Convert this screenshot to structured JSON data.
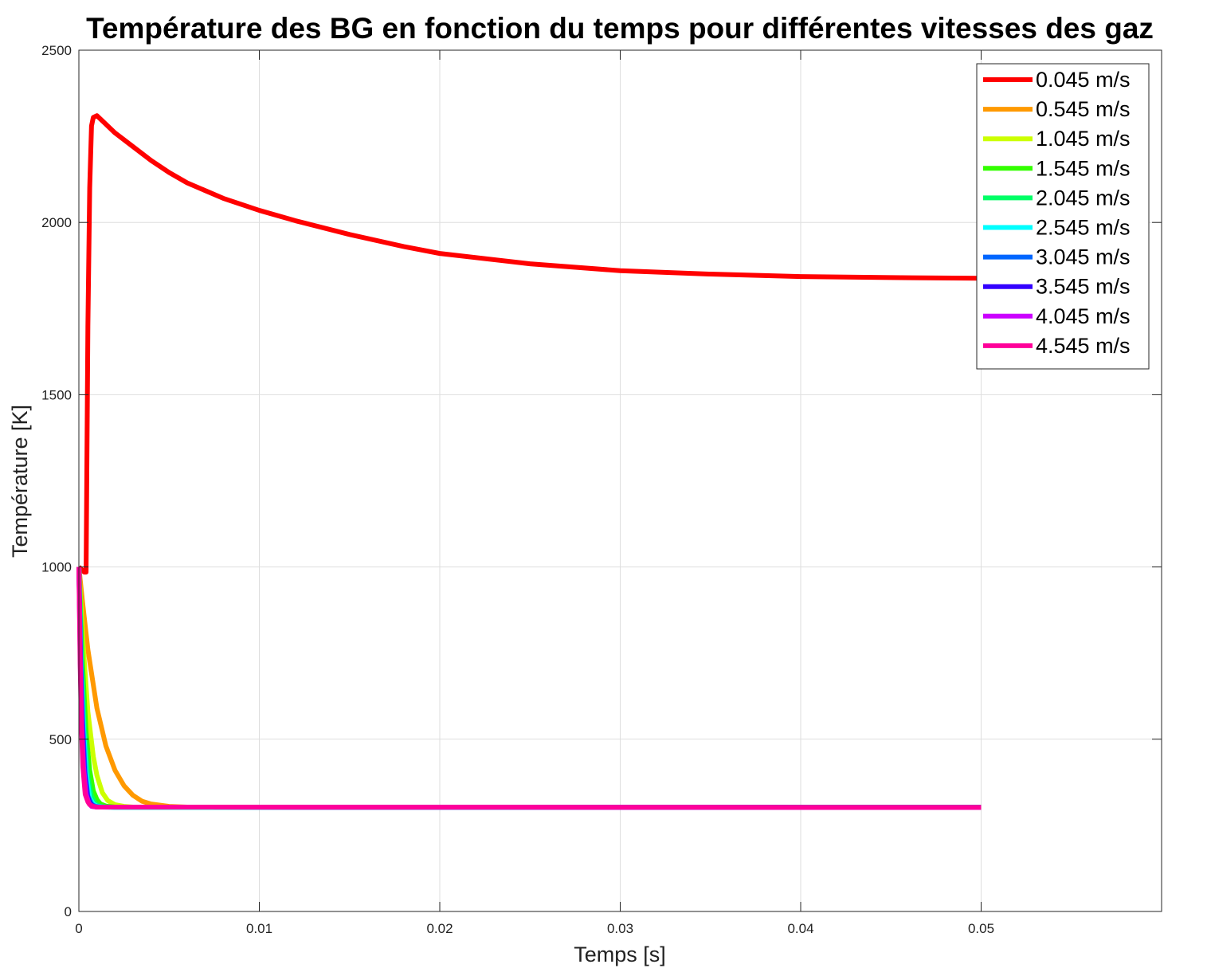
{
  "chart_data": {
    "type": "line",
    "title": "Température des BG en fonction du temps pour différentes vitesses des gaz",
    "xlabel": "Temps [s]",
    "ylabel": "Température [K]",
    "xlim": [
      0,
      0.06
    ],
    "ylim": [
      0,
      2500
    ],
    "xticks": [
      0,
      0.01,
      0.02,
      0.03,
      0.04,
      0.05
    ],
    "xtick_labels": [
      "0",
      "0.01",
      "0.02",
      "0.03",
      "0.04",
      "0.05"
    ],
    "yticks": [
      0,
      500,
      1000,
      1500,
      2000,
      2500
    ],
    "ytick_labels": [
      "0",
      "500",
      "1000",
      "1500",
      "2000",
      "2500"
    ],
    "grid": true,
    "legend_position": "top-right",
    "series": [
      {
        "name": "0.045 m/s",
        "color": "#ff0000",
        "x": [
          0,
          0.0003,
          0.0004,
          0.0005,
          0.0006,
          0.0007,
          0.0008,
          0.001,
          0.002,
          0.003,
          0.004,
          0.005,
          0.006,
          0.008,
          0.01,
          0.012,
          0.015,
          0.018,
          0.02,
          0.025,
          0.03,
          0.035,
          0.04,
          0.045,
          0.05
        ],
        "y": [
          1000,
          985,
          985,
          1700,
          2100,
          2280,
          2305,
          2310,
          2260,
          2220,
          2180,
          2145,
          2115,
          2070,
          2035,
          2005,
          1965,
          1930,
          1910,
          1880,
          1860,
          1850,
          1843,
          1840,
          1838
        ]
      },
      {
        "name": "0.545 m/s",
        "color": "#ff9900",
        "x": [
          0,
          0.0002,
          0.0005,
          0.001,
          0.0015,
          0.002,
          0.0025,
          0.003,
          0.0035,
          0.004,
          0.005,
          0.006,
          0.01,
          0.05
        ],
        "y": [
          1000,
          900,
          760,
          590,
          480,
          410,
          365,
          337,
          320,
          312,
          305,
          303,
          302,
          302
        ]
      },
      {
        "name": "1.045 m/s",
        "color": "#ccff00",
        "x": [
          0,
          0.0002,
          0.0005,
          0.0008,
          0.001,
          0.0013,
          0.0016,
          0.002,
          0.0025,
          0.003,
          0.004,
          0.05
        ],
        "y": [
          1000,
          800,
          580,
          450,
          395,
          345,
          322,
          310,
          305,
          303,
          302,
          302
        ]
      },
      {
        "name": "1.545 m/s",
        "color": "#33ff00",
        "x": [
          0,
          0.0002,
          0.0004,
          0.0006,
          0.0008,
          0.001,
          0.0012,
          0.0015,
          0.002,
          0.003,
          0.05
        ],
        "y": [
          1000,
          720,
          520,
          410,
          350,
          325,
          312,
          306,
          303,
          302,
          302
        ]
      },
      {
        "name": "2.045 m/s",
        "color": "#00ff66",
        "x": [
          0,
          0.00015,
          0.0003,
          0.0005,
          0.0007,
          0.0009,
          0.0011,
          0.0014,
          0.002,
          0.05
        ],
        "y": [
          1000,
          720,
          540,
          390,
          335,
          314,
          307,
          304,
          302,
          302
        ]
      },
      {
        "name": "2.545 m/s",
        "color": "#00ffff",
        "x": [
          0,
          0.00012,
          0.00025,
          0.0004,
          0.0006,
          0.0008,
          0.001,
          0.0013,
          0.002,
          0.05
        ],
        "y": [
          1000,
          720,
          540,
          405,
          330,
          312,
          306,
          303,
          302,
          302
        ]
      },
      {
        "name": "3.045 m/s",
        "color": "#0066ff",
        "x": [
          0,
          0.0001,
          0.0002,
          0.00035,
          0.0005,
          0.0007,
          0.0009,
          0.0012,
          0.05
        ],
        "y": [
          1000,
          730,
          560,
          400,
          335,
          312,
          305,
          303,
          302
        ]
      },
      {
        "name": "3.545 m/s",
        "color": "#3300ff",
        "x": [
          0,
          0.0001,
          0.0002,
          0.0003,
          0.00045,
          0.0006,
          0.0008,
          0.001,
          0.05
        ],
        "y": [
          1000,
          700,
          520,
          410,
          340,
          315,
          305,
          303,
          302
        ]
      },
      {
        "name": "4.045 m/s",
        "color": "#cc00ff",
        "x": [
          0,
          8e-05,
          0.00016,
          0.00026,
          0.0004,
          0.00055,
          0.0007,
          0.001,
          0.05
        ],
        "y": [
          1000,
          720,
          540,
          420,
          340,
          315,
          305,
          303,
          302
        ]
      },
      {
        "name": "4.545 m/s",
        "color": "#ff0099",
        "x": [
          0,
          7e-05,
          0.00014,
          0.00022,
          0.00035,
          0.0005,
          0.0006,
          0.0008,
          0.001,
          0.05
        ],
        "y": [
          1000,
          720,
          540,
          420,
          340,
          318,
          310,
          305,
          303,
          302
        ]
      }
    ]
  }
}
